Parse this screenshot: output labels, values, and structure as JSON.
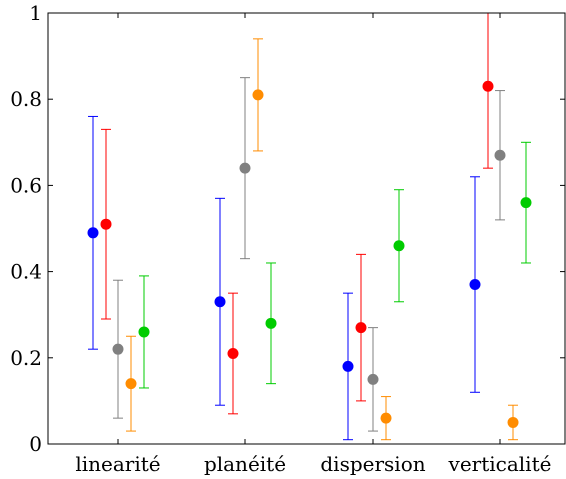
{
  "chart_data": {
    "type": "scatter",
    "subtype": "error-bar",
    "categories": [
      "linearité",
      "planéité",
      "dispersion",
      "verticalité"
    ],
    "ylim": [
      0,
      1
    ],
    "yticks": [
      0,
      0.2,
      0.4,
      0.6,
      0.8,
      1
    ],
    "ytick_labels": [
      "0",
      "0.2",
      "0.4",
      "0.6",
      "0.8",
      "1"
    ],
    "grid": false,
    "legend": "none",
    "series": [
      {
        "color": "#0000ff",
        "values": [
          0.49,
          0.33,
          0.18,
          0.37
        ],
        "err_low": [
          0.22,
          0.09,
          0.01,
          0.12
        ],
        "err_high": [
          0.76,
          0.57,
          0.35,
          0.62
        ]
      },
      {
        "color": "#ff0000",
        "values": [
          0.51,
          0.21,
          0.27,
          0.83
        ],
        "err_low": [
          0.29,
          0.07,
          0.1,
          0.64
        ],
        "err_high": [
          0.73,
          0.35,
          0.44,
          1.0
        ]
      },
      {
        "color": "#808080",
        "values": [
          0.22,
          0.64,
          0.15,
          0.67
        ],
        "err_low": [
          0.06,
          0.43,
          0.03,
          0.52
        ],
        "err_high": [
          0.38,
          0.85,
          0.27,
          0.82
        ]
      },
      {
        "color": "#ff8c00",
        "values": [
          0.14,
          0.81,
          0.06,
          0.05
        ],
        "err_low": [
          0.03,
          0.68,
          0.01,
          0.01
        ],
        "err_high": [
          0.25,
          0.94,
          0.11,
          0.09
        ]
      },
      {
        "color": "#00cc00",
        "values": [
          0.26,
          0.28,
          0.46,
          0.56
        ],
        "err_low": [
          0.13,
          0.14,
          0.33,
          0.42
        ],
        "err_high": [
          0.39,
          0.42,
          0.59,
          0.7
        ]
      }
    ]
  }
}
